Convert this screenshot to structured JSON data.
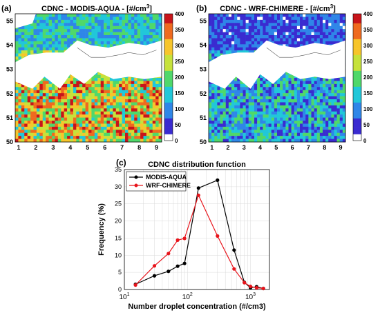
{
  "panels": {
    "a": {
      "panel_label": "(a)",
      "title": "CDNC - MODIS-AQUA - [#/cm",
      "title_sup": "3",
      "title_end": "]",
      "x_ticks": [
        "1",
        "2",
        "3",
        "4",
        "5",
        "6",
        "7",
        "8",
        "9"
      ],
      "y_ticks": [
        "50",
        "51",
        "52",
        "53",
        "54",
        "55"
      ],
      "colorbar_ticks": [
        "0",
        "50",
        "100",
        "150",
        "200",
        "250",
        "300",
        "350",
        "400"
      ]
    },
    "b": {
      "panel_label": "(b)",
      "title": "CDNC - WRF-CHIMERE - [#/cm",
      "title_sup": "3",
      "title_end": "]",
      "x_ticks": [
        "1",
        "2",
        "3",
        "4",
        "5",
        "6",
        "7",
        "8",
        "9"
      ],
      "y_ticks": [
        "50",
        "51",
        "52",
        "53",
        "54",
        "55"
      ],
      "colorbar_ticks": [
        "0",
        "50",
        "100",
        "150",
        "200",
        "250",
        "300",
        "350",
        "400"
      ]
    },
    "c": {
      "panel_label": "(c)"
    }
  },
  "colors": {
    "modis": "#000000",
    "wrf": "#e8141b",
    "land_mask": "#ffffff",
    "colormap": [
      "#ffffff",
      "#3a2bd0",
      "#2f86e8",
      "#21c7d9",
      "#4fd86a",
      "#c6e23b",
      "#f7c52b",
      "#ef6a1f",
      "#c8141a"
    ]
  },
  "chart_data": [
    {
      "type": "heatmap",
      "title": "CDNC - MODIS-AQUA - [#/cm3]",
      "xlim": [
        0.8,
        9.3
      ],
      "ylim": [
        50,
        55.3
      ],
      "colorbar_range": [
        0,
        400
      ]
    },
    {
      "type": "heatmap",
      "title": "CDNC - WRF-CHIMERE - [#/cm3]",
      "xlim": [
        0.8,
        9.3
      ],
      "ylim": [
        50,
        55.3
      ],
      "colorbar_range": [
        0,
        400
      ]
    },
    {
      "type": "line",
      "title": "CDNC distribution function",
      "xlabel": "Number droplet concentration (#/cm3)",
      "ylabel": "Frequency (%)",
      "x_scale": "log",
      "xlim": [
        10,
        2000
      ],
      "ylim": [
        0,
        35
      ],
      "x_tick_labels": [
        {
          "value": 10,
          "base": "10",
          "exp": "1"
        },
        {
          "value": 100,
          "base": "10",
          "exp": "2"
        },
        {
          "value": 1000,
          "base": "10",
          "exp": "3"
        }
      ],
      "y_ticks": [
        0,
        5,
        10,
        15,
        20,
        25,
        30,
        35
      ],
      "grid": true,
      "legend_position": "top-left",
      "series": [
        {
          "name": "MODIS-AQUA",
          "x": [
            15,
            30,
            50,
            70,
            90,
            150,
            300,
            550,
            800,
            1000,
            1250,
            1600
          ],
          "y": [
            1.5,
            4.0,
            5.3,
            6.8,
            7.6,
            29.6,
            31.9,
            11.5,
            2.1,
            0.5,
            0.8,
            0.3
          ]
        },
        {
          "name": "WRF-CHIMERE",
          "x": [
            15,
            30,
            50,
            70,
            90,
            150,
            300,
            550,
            800,
            1000,
            1250,
            1600
          ],
          "y": [
            1.3,
            6.9,
            10.5,
            14.4,
            14.9,
            27.5,
            15.6,
            6.0,
            2.0,
            0.9,
            0.5,
            0.3
          ]
        }
      ]
    }
  ]
}
